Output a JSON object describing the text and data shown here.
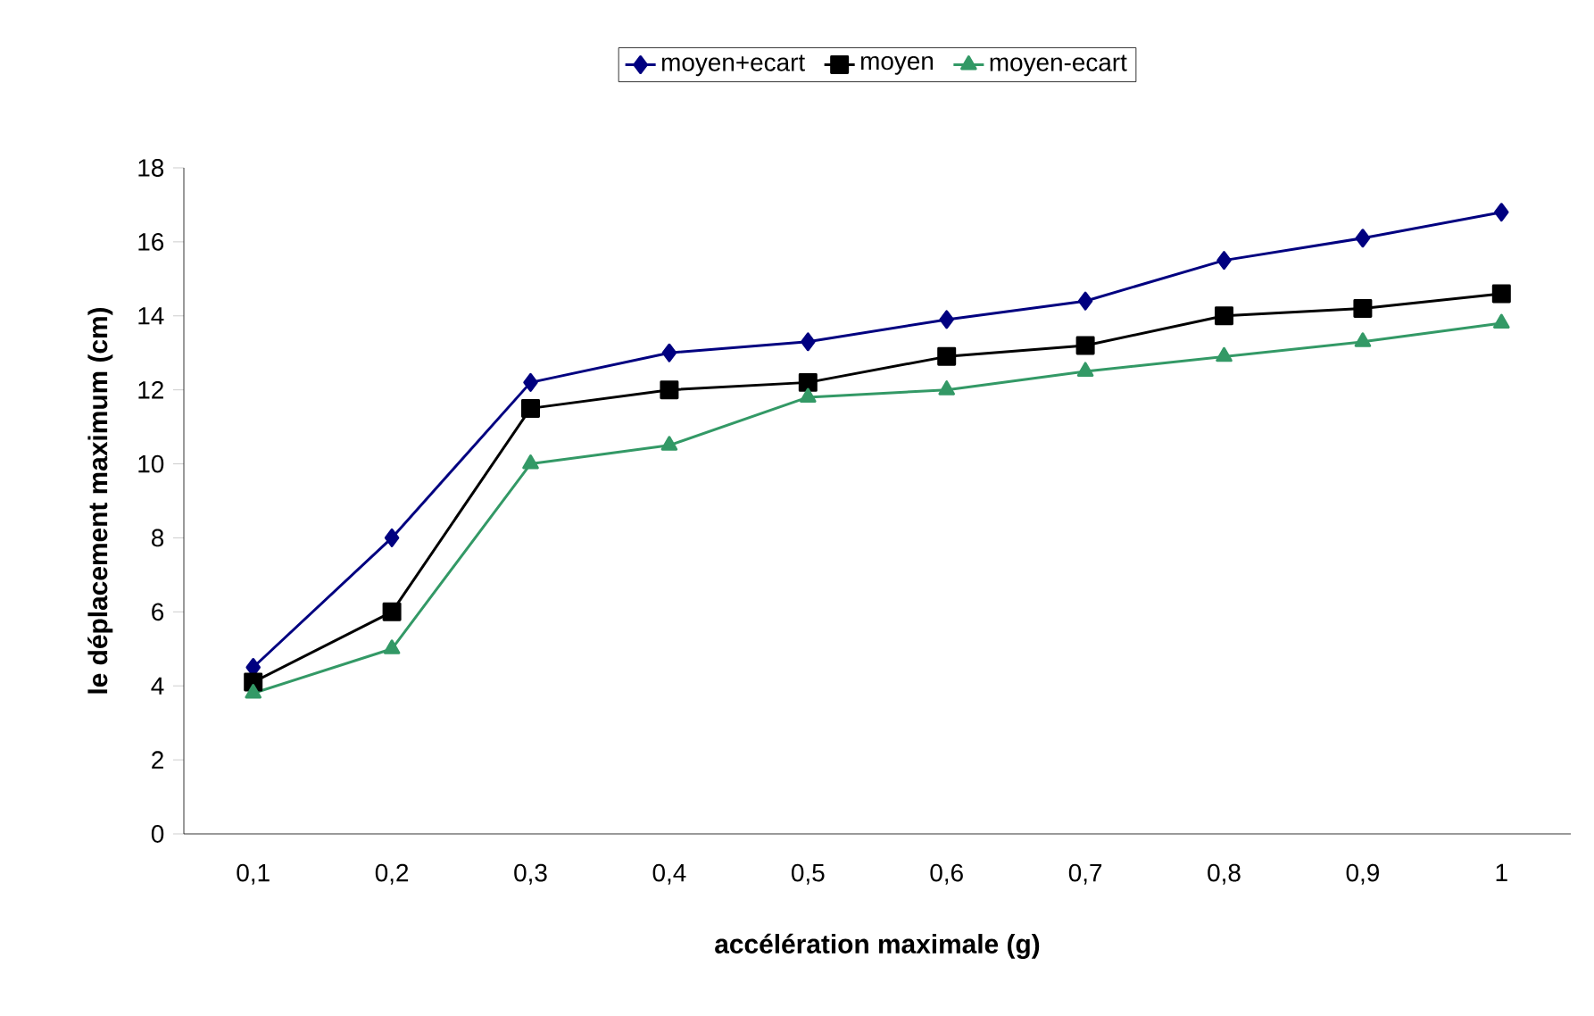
{
  "chart_data": {
    "type": "line",
    "xlabel": "accélération maximale (g)",
    "ylabel": "le déplacement maximum (cm)",
    "categories": [
      "0,1",
      "0,2",
      "0,3",
      "0,4",
      "0,5",
      "0,6",
      "0,7",
      "0,8",
      "0,9",
      "1"
    ],
    "series": [
      {
        "name": "moyen+ecart",
        "color": "#000080",
        "marker": "diamond",
        "values": [
          4.5,
          8.0,
          12.2,
          13.0,
          13.3,
          13.9,
          14.4,
          15.5,
          16.1,
          16.8
        ]
      },
      {
        "name": "moyen",
        "color": "#000000",
        "marker": "square",
        "values": [
          4.1,
          6.0,
          11.5,
          12.0,
          12.2,
          12.9,
          13.2,
          14.0,
          14.2,
          14.6
        ]
      },
      {
        "name": "moyen-ecart",
        "color": "#339966",
        "marker": "triangle",
        "values": [
          3.8,
          5.0,
          10.0,
          10.5,
          11.8,
          12.0,
          12.5,
          12.9,
          13.3,
          13.8
        ]
      }
    ],
    "ylim": [
      0,
      18
    ],
    "yticks": [
      0,
      2,
      4,
      6,
      8,
      10,
      12,
      14,
      16,
      18
    ],
    "grid": false,
    "legend": "top",
    "line_style": "solid"
  }
}
